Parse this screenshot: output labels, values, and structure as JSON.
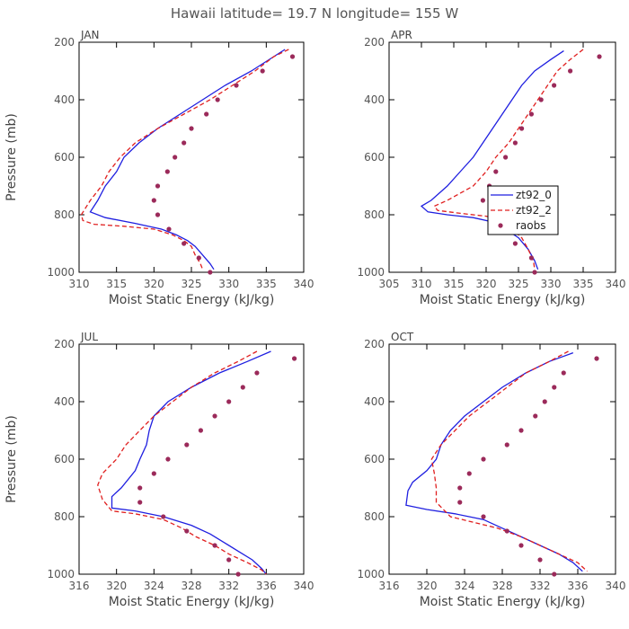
{
  "title": "Hawaii  latitude= 19.7 N longitude= 155 W",
  "colors": {
    "zt92_0": "#1f1fe0",
    "zt92_2": "#e01f1f",
    "raobs": "#9b2a5a"
  },
  "chart_data": [
    {
      "type": "line",
      "panel_title": "JAN",
      "xlabel": "Moist Static Energy (kJ/kg)",
      "ylabel": "Pressure (mb)",
      "xlim": [
        310,
        340
      ],
      "ylim": [
        1000,
        200
      ],
      "y_inverted": true,
      "xticks": [
        310,
        315,
        320,
        325,
        330,
        335,
        340
      ],
      "yticks": [
        200,
        400,
        600,
        800,
        1000
      ],
      "legend": null,
      "series": [
        {
          "name": "zt92_0",
          "style": "solid",
          "points": [
            [
              337.5,
              225
            ],
            [
              336,
              250
            ],
            [
              333,
              300
            ],
            [
              329.5,
              350
            ],
            [
              326.5,
              400
            ],
            [
              323.5,
              450
            ],
            [
              320.5,
              500
            ],
            [
              318,
              550
            ],
            [
              316,
              600
            ],
            [
              315,
              650
            ],
            [
              313.5,
              700
            ],
            [
              312.5,
              750
            ],
            [
              311.5,
              790
            ],
            [
              313.5,
              810
            ],
            [
              317.5,
              830
            ],
            [
              321,
              850
            ],
            [
              323,
              870
            ],
            [
              324.5,
              890
            ],
            [
              325.5,
              910
            ],
            [
              326.5,
              940
            ],
            [
              327.5,
              970
            ],
            [
              328,
              990
            ]
          ]
        },
        {
          "name": "zt92_2",
          "style": "dashed",
          "points": [
            [
              338,
              225
            ],
            [
              336,
              250
            ],
            [
              333.5,
              300
            ],
            [
              330.5,
              350
            ],
            [
              327.5,
              400
            ],
            [
              324,
              450
            ],
            [
              320.5,
              500
            ],
            [
              317.5,
              550
            ],
            [
              315.5,
              600
            ],
            [
              314,
              650
            ],
            [
              313,
              700
            ],
            [
              311.5,
              750
            ],
            [
              310.3,
              800
            ],
            [
              310.5,
              820
            ],
            [
              312,
              833
            ],
            [
              316,
              840
            ],
            [
              320,
              850
            ],
            [
              322.5,
              870
            ],
            [
              324,
              890
            ],
            [
              325,
              910
            ],
            [
              325.5,
              940
            ],
            [
              326.2,
              970
            ],
            [
              326.5,
              990
            ]
          ]
        },
        {
          "name": "raobs",
          "style": "dots",
          "points": [
            [
              338.5,
              250
            ],
            [
              334.5,
              300
            ],
            [
              331,
              350
            ],
            [
              328.5,
              400
            ],
            [
              327,
              450
            ],
            [
              325,
              500
            ],
            [
              324,
              550
            ],
            [
              322.8,
              600
            ],
            [
              321.8,
              650
            ],
            [
              320.5,
              700
            ],
            [
              320,
              750
            ],
            [
              320.5,
              800
            ],
            [
              322,
              850
            ],
            [
              324,
              900
            ],
            [
              326,
              950
            ],
            [
              327.5,
              1000
            ]
          ]
        }
      ]
    },
    {
      "type": "line",
      "panel_title": "APR",
      "xlabel": "Moist Static Energy (kJ/kg)",
      "ylabel": "",
      "xlim": [
        305,
        340
      ],
      "ylim": [
        1000,
        200
      ],
      "y_inverted": true,
      "xticks": [
        305,
        310,
        315,
        320,
        325,
        330,
        335,
        340
      ],
      "yticks": [
        200,
        400,
        600,
        800,
        1000
      ],
      "legend": {
        "position": "right-middle",
        "entries": [
          "zt92_0",
          "zt92_2",
          "raobs"
        ]
      },
      "series": [
        {
          "name": "zt92_0",
          "style": "solid",
          "points": [
            [
              332,
              230
            ],
            [
              330,
              260
            ],
            [
              327.5,
              300
            ],
            [
              325.5,
              350
            ],
            [
              324,
              400
            ],
            [
              322.5,
              450
            ],
            [
              321,
              500
            ],
            [
              319.5,
              550
            ],
            [
              318,
              600
            ],
            [
              316,
              650
            ],
            [
              314,
              700
            ],
            [
              311.5,
              750
            ],
            [
              310,
              770
            ],
            [
              311,
              790
            ],
            [
              314,
              800
            ],
            [
              318,
              810
            ],
            [
              321,
              825
            ],
            [
              323,
              850
            ],
            [
              325,
              880
            ],
            [
              326.5,
              920
            ],
            [
              327.5,
              960
            ],
            [
              328,
              990
            ]
          ]
        },
        {
          "name": "zt92_2",
          "style": "dashed",
          "points": [
            [
              335,
              225
            ],
            [
              333,
              260
            ],
            [
              331,
              300
            ],
            [
              329.5,
              350
            ],
            [
              328,
              400
            ],
            [
              326.5,
              450
            ],
            [
              325,
              500
            ],
            [
              323.5,
              550
            ],
            [
              321.5,
              600
            ],
            [
              320,
              650
            ],
            [
              318,
              700
            ],
            [
              314,
              750
            ],
            [
              312,
              770
            ],
            [
              312.5,
              785
            ],
            [
              316,
              795
            ],
            [
              320,
              805
            ],
            [
              322.5,
              820
            ],
            [
              324,
              850
            ],
            [
              325.5,
              880
            ],
            [
              326.5,
              920
            ],
            [
              327.3,
              960
            ],
            [
              327.5,
              990
            ]
          ]
        },
        {
          "name": "raobs",
          "style": "dots",
          "points": [
            [
              337.5,
              250
            ],
            [
              333,
              300
            ],
            [
              330.5,
              350
            ],
            [
              328.5,
              400
            ],
            [
              327,
              450
            ],
            [
              325.5,
              500
            ],
            [
              324.5,
              550
            ],
            [
              323,
              600
            ],
            [
              321.5,
              650
            ],
            [
              320.5,
              700
            ],
            [
              319.5,
              750
            ],
            [
              321.5,
              800
            ],
            [
              322.5,
              850
            ],
            [
              324.5,
              900
            ],
            [
              327,
              950
            ],
            [
              327.5,
              1000
            ]
          ]
        }
      ]
    },
    {
      "type": "line",
      "panel_title": "JUL",
      "xlabel": "Moist Static Energy (kJ/kg)",
      "ylabel": "Pressure (mb)",
      "xlim": [
        316,
        340
      ],
      "ylim": [
        1000,
        200
      ],
      "y_inverted": true,
      "xticks": [
        316,
        320,
        324,
        328,
        332,
        336,
        340
      ],
      "yticks": [
        200,
        400,
        600,
        800,
        1000
      ],
      "legend": null,
      "series": [
        {
          "name": "zt92_0",
          "style": "solid",
          "points": [
            [
              336.5,
              225
            ],
            [
              334,
              260
            ],
            [
              331,
              300
            ],
            [
              328,
              350
            ],
            [
              325.5,
              400
            ],
            [
              324,
              450
            ],
            [
              323.5,
              500
            ],
            [
              323.2,
              550
            ],
            [
              322.5,
              600
            ],
            [
              322,
              640
            ],
            [
              320.5,
              700
            ],
            [
              319.5,
              730
            ],
            [
              319.5,
              770
            ],
            [
              322,
              780
            ],
            [
              325,
              800
            ],
            [
              328,
              830
            ],
            [
              330,
              860
            ],
            [
              331.5,
              890
            ],
            [
              333,
              920
            ],
            [
              334.5,
              950
            ],
            [
              335.5,
              980
            ],
            [
              336,
              1000
            ]
          ]
        },
        {
          "name": "zt92_2",
          "style": "dashed",
          "points": [
            [
              335,
              225
            ],
            [
              333,
              260
            ],
            [
              330.5,
              300
            ],
            [
              328,
              350
            ],
            [
              326,
              400
            ],
            [
              324,
              450
            ],
            [
              322.5,
              500
            ],
            [
              321,
              550
            ],
            [
              320,
              600
            ],
            [
              318.5,
              650
            ],
            [
              318,
              690
            ],
            [
              318.5,
              740
            ],
            [
              319.5,
              780
            ],
            [
              322,
              790
            ],
            [
              325,
              810
            ],
            [
              327,
              840
            ],
            [
              328.5,
              870
            ],
            [
              330.5,
              900
            ],
            [
              332,
              930
            ],
            [
              334,
              960
            ],
            [
              335.5,
              985
            ],
            [
              336,
              1000
            ]
          ]
        },
        {
          "name": "raobs",
          "style": "dots",
          "points": [
            [
              339,
              250
            ],
            [
              335,
              300
            ],
            [
              333.5,
              350
            ],
            [
              332,
              400
            ],
            [
              330.5,
              450
            ],
            [
              329,
              500
            ],
            [
              327.5,
              550
            ],
            [
              325.5,
              600
            ],
            [
              324,
              650
            ],
            [
              322.5,
              700
            ],
            [
              322.5,
              750
            ],
            [
              325,
              800
            ],
            [
              327.5,
              850
            ],
            [
              330.5,
              900
            ],
            [
              332,
              950
            ],
            [
              333,
              1000
            ]
          ]
        }
      ]
    },
    {
      "type": "line",
      "panel_title": "OCT",
      "xlabel": "Moist Static Energy (kJ/kg)",
      "ylabel": "",
      "xlim": [
        316,
        340
      ],
      "ylim": [
        1000,
        200
      ],
      "y_inverted": true,
      "xticks": [
        316,
        320,
        324,
        328,
        332,
        336,
        340
      ],
      "yticks": [
        200,
        400,
        600,
        800,
        1000
      ],
      "legend": null,
      "series": [
        {
          "name": "zt92_0",
          "style": "solid",
          "points": [
            [
              335.5,
              230
            ],
            [
              333,
              260
            ],
            [
              330.5,
              300
            ],
            [
              328,
              350
            ],
            [
              326,
              400
            ],
            [
              324,
              450
            ],
            [
              322.5,
              500
            ],
            [
              321.5,
              550
            ],
            [
              321,
              600
            ],
            [
              320,
              640
            ],
            [
              318.5,
              680
            ],
            [
              318,
              710
            ],
            [
              317.8,
              760
            ],
            [
              320,
              775
            ],
            [
              323,
              790
            ],
            [
              326,
              810
            ],
            [
              328,
              840
            ],
            [
              330,
              870
            ],
            [
              332,
              900
            ],
            [
              334,
              930
            ],
            [
              335.5,
              960
            ],
            [
              336.5,
              990
            ]
          ]
        },
        {
          "name": "zt92_2",
          "style": "dashed",
          "points": [
            [
              335,
              225
            ],
            [
              333,
              260
            ],
            [
              330.5,
              300
            ],
            [
              328.5,
              350
            ],
            [
              326.5,
              400
            ],
            [
              324.5,
              450
            ],
            [
              323,
              500
            ],
            [
              321.5,
              550
            ],
            [
              320.5,
              600
            ],
            [
              320.8,
              650
            ],
            [
              321,
              700
            ],
            [
              321,
              750
            ],
            [
              322.5,
              800
            ],
            [
              325,
              820
            ],
            [
              327.5,
              840
            ],
            [
              330,
              870
            ],
            [
              332,
              900
            ],
            [
              334,
              930
            ],
            [
              336,
              960
            ],
            [
              337,
              990
            ]
          ]
        },
        {
          "name": "raobs",
          "style": "dots",
          "points": [
            [
              338,
              250
            ],
            [
              334.5,
              300
            ],
            [
              333.5,
              350
            ],
            [
              332.5,
              400
            ],
            [
              331.5,
              450
            ],
            [
              330,
              500
            ],
            [
              328.5,
              550
            ],
            [
              326,
              600
            ],
            [
              324.5,
              650
            ],
            [
              323.5,
              700
            ],
            [
              323.5,
              750
            ],
            [
              326,
              800
            ],
            [
              328.5,
              850
            ],
            [
              330,
              900
            ],
            [
              332,
              950
            ],
            [
              333.5,
              1000
            ]
          ]
        }
      ]
    }
  ]
}
